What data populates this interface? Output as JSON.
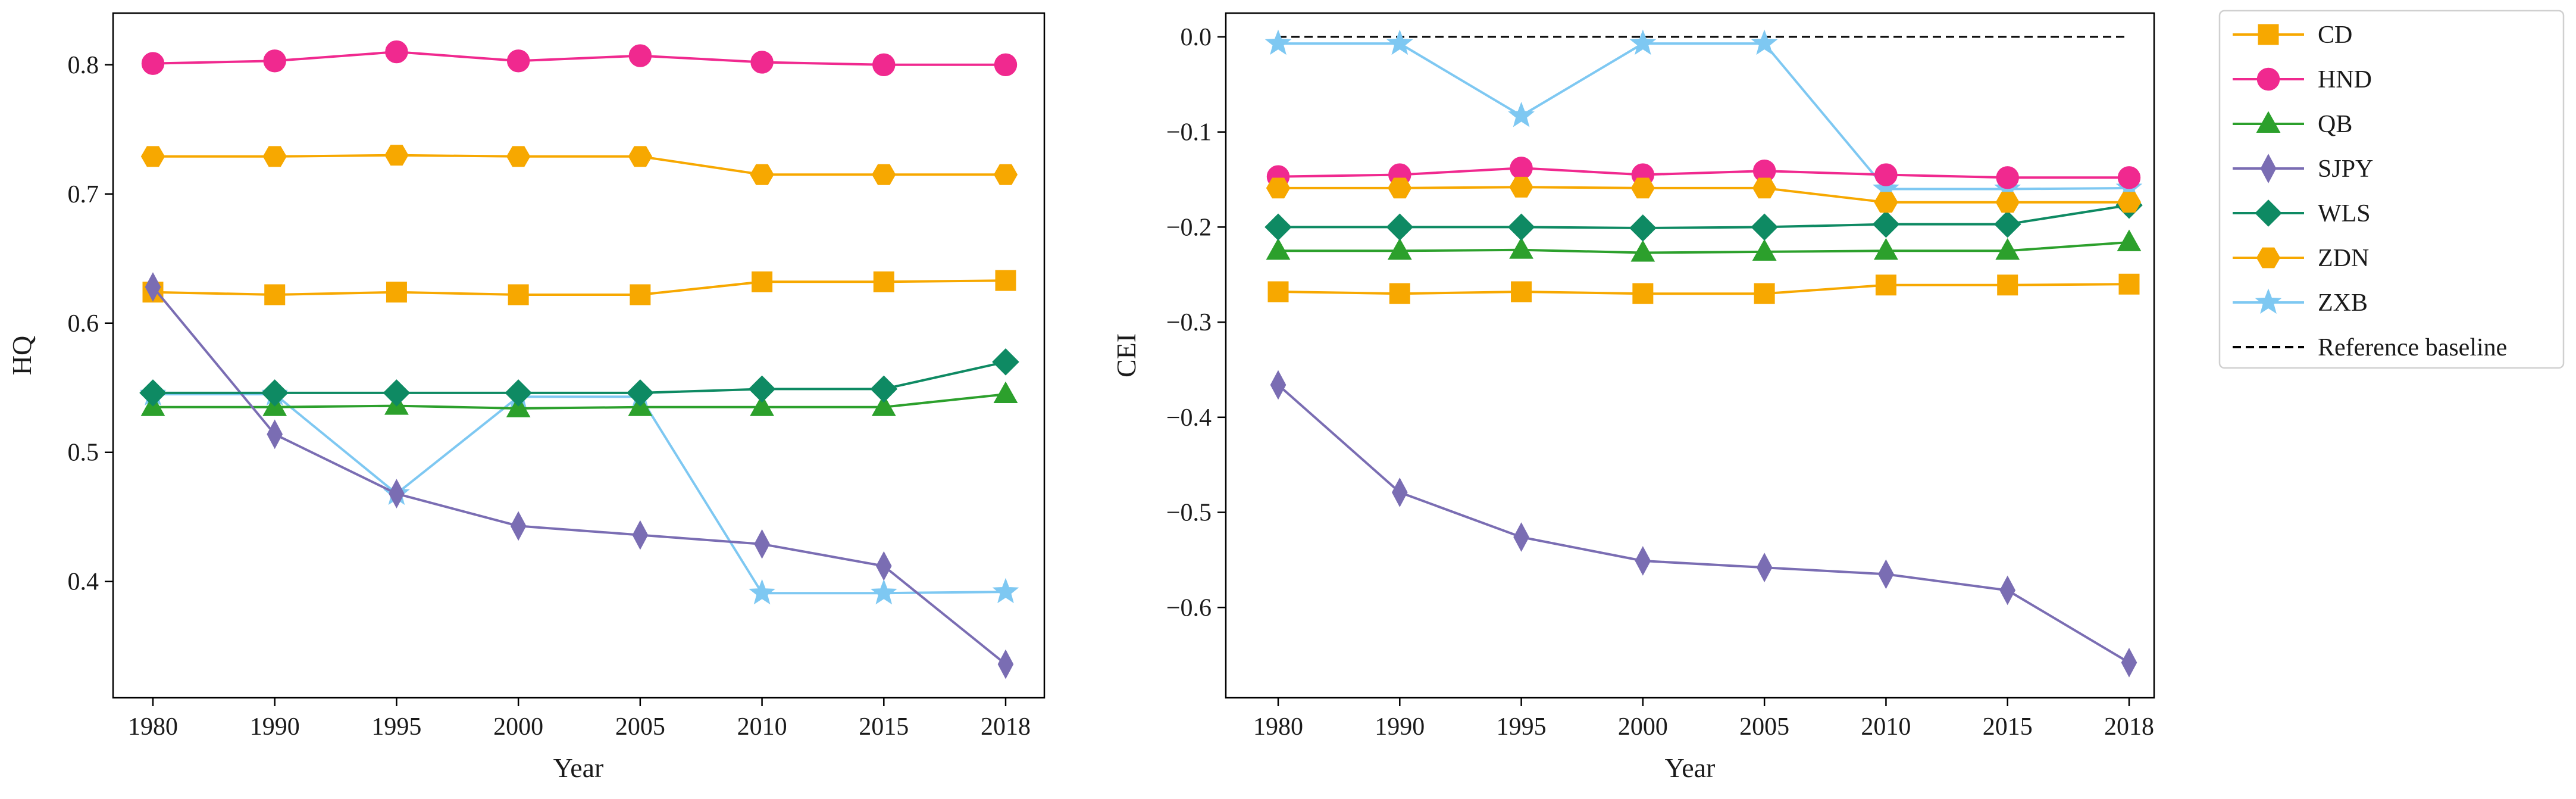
{
  "chart_data": [
    {
      "type": "line",
      "panel": "left",
      "title": "",
      "xlabel": "Year",
      "ylabel": "HQ",
      "categories": [
        "1980",
        "1990",
        "1995",
        "2000",
        "2005",
        "2010",
        "2015",
        "2018"
      ],
      "ylim": [
        0.31,
        0.84
      ],
      "yticks": [
        0.4,
        0.5,
        0.6,
        0.7,
        0.8
      ],
      "ytick_labels": [
        "0.4",
        "0.5",
        "0.6",
        "0.7",
        "0.8"
      ],
      "series": [
        {
          "name": "ZXB",
          "color": "#7ec8f2",
          "marker": "star",
          "values": [
            0.545,
            0.545,
            0.468,
            0.543,
            0.543,
            0.391,
            0.391,
            0.392
          ]
        },
        {
          "name": "CD",
          "color": "#f7a800",
          "marker": "square",
          "values": [
            0.624,
            0.622,
            0.624,
            0.622,
            0.622,
            0.632,
            0.632,
            0.633
          ]
        },
        {
          "name": "HND",
          "color": "#f0298f",
          "marker": "circle",
          "values": [
            0.801,
            0.803,
            0.81,
            0.803,
            0.807,
            0.802,
            0.8,
            0.8
          ]
        },
        {
          "name": "QB",
          "color": "#2ca02c",
          "marker": "triangle",
          "values": [
            0.535,
            0.535,
            0.536,
            0.534,
            0.535,
            0.535,
            0.535,
            0.545
          ]
        },
        {
          "name": "SJPY",
          "color": "#7a6db3",
          "marker": "thin_diamond",
          "values": [
            0.628,
            0.514,
            0.468,
            0.443,
            0.436,
            0.429,
            0.412,
            0.336
          ]
        },
        {
          "name": "WLS",
          "color": "#0e8a63",
          "marker": "diamond",
          "values": [
            0.546,
            0.546,
            0.546,
            0.546,
            0.546,
            0.549,
            0.549,
            0.57
          ]
        },
        {
          "name": "ZDN",
          "color": "#f7a800",
          "marker": "hexagon",
          "values": [
            0.729,
            0.729,
            0.73,
            0.729,
            0.729,
            0.715,
            0.715,
            0.715
          ]
        }
      ]
    },
    {
      "type": "line",
      "panel": "right",
      "title": "",
      "xlabel": "Year",
      "ylabel": "CEI",
      "categories": [
        "1980",
        "1990",
        "1995",
        "2000",
        "2005",
        "2010",
        "2015",
        "2018"
      ],
      "ylim": [
        -0.695,
        0.025
      ],
      "yticks": [
        -0.6,
        -0.5,
        -0.4,
        -0.3,
        -0.2,
        -0.1,
        0.0
      ],
      "ytick_labels": [
        "−0.6",
        "−0.5",
        "−0.4",
        "−0.3",
        "−0.2",
        "−0.1",
        "0.0"
      ],
      "reference_baseline": {
        "name": "Reference baseline",
        "value": 0.0,
        "color": "#000000"
      },
      "series": [
        {
          "name": "ZXB",
          "color": "#7ec8f2",
          "marker": "star",
          "values": [
            -0.007,
            -0.007,
            -0.083,
            -0.007,
            -0.007,
            -0.16,
            -0.16,
            -0.159
          ]
        },
        {
          "name": "CD",
          "color": "#f7a800",
          "marker": "square",
          "values": [
            -0.268,
            -0.27,
            -0.268,
            -0.27,
            -0.27,
            -0.261,
            -0.261,
            -0.26
          ]
        },
        {
          "name": "HND",
          "color": "#f0298f",
          "marker": "circle",
          "values": [
            -0.147,
            -0.145,
            -0.138,
            -0.145,
            -0.141,
            -0.145,
            -0.148,
            -0.148
          ]
        },
        {
          "name": "QB",
          "color": "#2ca02c",
          "marker": "triangle",
          "values": [
            -0.225,
            -0.225,
            -0.224,
            -0.227,
            -0.226,
            -0.225,
            -0.225,
            -0.216
          ]
        },
        {
          "name": "SJPY",
          "color": "#7a6db3",
          "marker": "thin_diamond",
          "values": [
            -0.366,
            -0.479,
            -0.526,
            -0.551,
            -0.558,
            -0.565,
            -0.582,
            -0.658
          ]
        },
        {
          "name": "WLS",
          "color": "#0e8a63",
          "marker": "diamond",
          "values": [
            -0.2,
            -0.2,
            -0.2,
            -0.201,
            -0.2,
            -0.197,
            -0.197,
            -0.177
          ]
        },
        {
          "name": "ZDN",
          "color": "#f7a800",
          "marker": "hexagon",
          "values": [
            -0.159,
            -0.159,
            -0.158,
            -0.159,
            -0.159,
            -0.174,
            -0.174,
            -0.174
          ]
        }
      ]
    }
  ],
  "legend": {
    "placement": "right",
    "items": [
      {
        "label": "CD",
        "color": "#f7a800",
        "marker": "square",
        "style": "solid"
      },
      {
        "label": "HND",
        "color": "#f0298f",
        "marker": "circle",
        "style": "solid"
      },
      {
        "label": "QB",
        "color": "#2ca02c",
        "marker": "triangle",
        "style": "solid"
      },
      {
        "label": "SJPY",
        "color": "#7a6db3",
        "marker": "thin_diamond",
        "style": "solid"
      },
      {
        "label": "WLS",
        "color": "#0e8a63",
        "marker": "diamond",
        "style": "solid"
      },
      {
        "label": "ZDN",
        "color": "#f7a800",
        "marker": "hexagon",
        "style": "solid"
      },
      {
        "label": "ZXB",
        "color": "#7ec8f2",
        "marker": "star",
        "style": "solid"
      },
      {
        "label": "Reference baseline",
        "color": "#000000",
        "marker": "none",
        "style": "dashed"
      }
    ]
  }
}
